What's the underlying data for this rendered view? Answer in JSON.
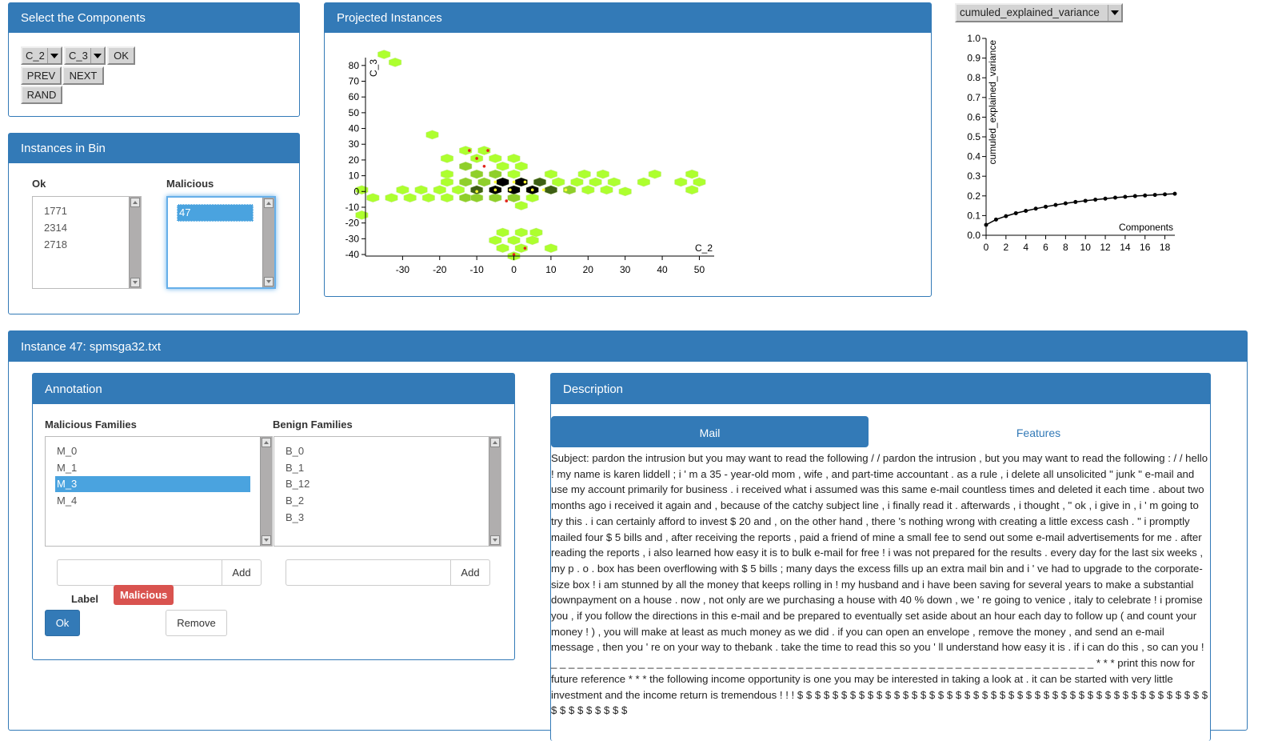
{
  "select_panel": {
    "title": "Select the Components",
    "x_component": "C_2",
    "y_component": "C_3",
    "ok_label": "OK",
    "prev_label": "PREV",
    "next_label": "NEXT",
    "rand_label": "RAND"
  },
  "bin_panel": {
    "title": "Instances in Bin",
    "ok_header": "Ok",
    "malicious_header": "Malicious",
    "ok_items": [
      "1771",
      "2314",
      "2718"
    ],
    "malicious_items": [
      "47"
    ],
    "selected_malicious": "47"
  },
  "projection_panel": {
    "title": "Projected Instances",
    "chart_data": {
      "type": "heatmap",
      "subtype": "hexbin",
      "xlabel": "C_2",
      "ylabel": "C_3",
      "xticks": [
        -30,
        -20,
        -10,
        0,
        10,
        20,
        30,
        40,
        50
      ],
      "yticks": [
        -40,
        -30,
        -20,
        -10,
        0,
        10,
        20,
        30,
        40,
        50,
        60,
        70,
        80
      ],
      "xlim": [
        -40,
        54
      ],
      "ylim": [
        -41,
        86
      ],
      "bins": [
        [
          -35,
          87,
          "light"
        ],
        [
          -32,
          82,
          "light"
        ],
        [
          -22,
          36,
          "light"
        ],
        [
          -18,
          21,
          "light"
        ],
        [
          -13,
          26,
          "light"
        ],
        [
          -10,
          21,
          "light"
        ],
        [
          -8,
          26,
          "light"
        ],
        [
          -5,
          21,
          "light"
        ],
        [
          -3,
          16,
          "light"
        ],
        [
          0,
          21,
          "light"
        ],
        [
          2,
          16,
          "light"
        ],
        [
          -18,
          11,
          "light"
        ],
        [
          -13,
          16,
          "mid"
        ],
        [
          -10,
          11,
          "mid"
        ],
        [
          -5,
          11,
          "mid"
        ],
        [
          0,
          11,
          "light"
        ],
        [
          -41,
          1,
          "light"
        ],
        [
          -38,
          -4,
          "light"
        ],
        [
          -33,
          -4,
          "light"
        ],
        [
          -30,
          1,
          "light"
        ],
        [
          -28,
          -4,
          "light"
        ],
        [
          -25,
          1,
          "light"
        ],
        [
          -23,
          -4,
          "light"
        ],
        [
          -20,
          1,
          "light"
        ],
        [
          -18,
          -4,
          "light"
        ],
        [
          -15,
          1,
          "light"
        ],
        [
          -13,
          -4,
          "mid"
        ],
        [
          -10,
          -4,
          "mid"
        ],
        [
          -5,
          -4,
          "mid"
        ],
        [
          0,
          -4,
          "mid"
        ],
        [
          5,
          -4,
          "light"
        ],
        [
          2,
          -9,
          "light"
        ],
        [
          -18,
          6,
          "light"
        ],
        [
          -13,
          6,
          "mid"
        ],
        [
          -8,
          6,
          "mid"
        ],
        [
          -3,
          6,
          "mid"
        ],
        [
          2,
          6,
          "dark"
        ],
        [
          7,
          6,
          "dark"
        ],
        [
          12,
          6,
          "light"
        ],
        [
          -10,
          1,
          "dark"
        ],
        [
          -5,
          1,
          "black"
        ],
        [
          0,
          1,
          "black"
        ],
        [
          5,
          1,
          "black"
        ],
        [
          -3,
          6,
          "black"
        ],
        [
          2,
          6,
          "black"
        ],
        [
          10,
          1,
          "dark"
        ],
        [
          15,
          1,
          "mid"
        ],
        [
          20,
          1,
          "light"
        ],
        [
          25,
          1,
          "light"
        ],
        [
          17,
          6,
          "light"
        ],
        [
          22,
          6,
          "light"
        ],
        [
          19,
          11,
          "light"
        ],
        [
          24,
          11,
          "light"
        ],
        [
          27,
          6,
          "light"
        ],
        [
          10,
          11,
          "light"
        ],
        [
          12,
          6,
          "light"
        ],
        [
          30,
          0,
          "light"
        ],
        [
          35,
          6,
          "light"
        ],
        [
          38,
          11,
          "light"
        ],
        [
          45,
          6,
          "light"
        ],
        [
          48,
          11,
          "light"
        ],
        [
          50,
          6,
          "light"
        ],
        [
          48,
          1,
          "light"
        ],
        [
          -41,
          -15,
          "light"
        ],
        [
          -3,
          -26,
          "light"
        ],
        [
          2,
          -26,
          "light"
        ],
        [
          6,
          -26,
          "light"
        ],
        [
          -5,
          -31,
          "light"
        ],
        [
          0,
          -31,
          "light"
        ],
        [
          5,
          -31,
          "light"
        ],
        [
          10,
          -36,
          "light"
        ],
        [
          -3,
          -36,
          "light"
        ],
        [
          2,
          -36,
          "light"
        ],
        [
          0,
          -41,
          "light"
        ]
      ],
      "red_points": [
        [
          -12,
          26
        ],
        [
          -7,
          26
        ],
        [
          -8,
          16
        ],
        [
          -2,
          -6
        ],
        [
          -10,
          21
        ],
        [
          3,
          -36
        ],
        [
          0,
          -40
        ]
      ],
      "yellow_points": [
        [
          -10,
          0
        ],
        [
          -5,
          1
        ],
        [
          0,
          6
        ],
        [
          5,
          1
        ],
        [
          -5,
          6
        ],
        [
          -1,
          1
        ],
        [
          3,
          6
        ],
        [
          8,
          1
        ],
        [
          14,
          1
        ]
      ]
    }
  },
  "variance_panel": {
    "selector": "cumuled_explained_variance",
    "chart_data": {
      "type": "line",
      "xlabel": "Components",
      "ylabel": "cumuled_explained_variance",
      "x": [
        0,
        1,
        2,
        3,
        4,
        5,
        6,
        7,
        8,
        9,
        10,
        11,
        12,
        13,
        14,
        15,
        16,
        17,
        18,
        19
      ],
      "y": [
        0.053,
        0.08,
        0.097,
        0.112,
        0.124,
        0.135,
        0.145,
        0.154,
        0.162,
        0.169,
        0.175,
        0.181,
        0.186,
        0.191,
        0.195,
        0.199,
        0.202,
        0.205,
        0.208,
        0.211
      ],
      "xticks": [
        0,
        2,
        4,
        6,
        8,
        10,
        12,
        14,
        16,
        18
      ],
      "yticks": [
        0.0,
        0.1,
        0.2,
        0.3,
        0.4,
        0.5,
        0.6,
        0.7,
        0.8,
        0.9,
        1.0
      ],
      "ylim": [
        0,
        1.0
      ],
      "xlim": [
        0,
        19
      ]
    }
  },
  "instance_panel": {
    "title": "Instance 47: spmsga32.txt",
    "annotation": {
      "title": "Annotation",
      "malicious_header": "Malicious Families",
      "benign_header": "Benign Families",
      "malicious_families": [
        "M_0",
        "M_1",
        "M_3",
        "M_4"
      ],
      "selected_family": "M_3",
      "benign_families": [
        "B_0",
        "B_1",
        "B_12",
        "B_2",
        "B_3"
      ],
      "add_label": "Add",
      "label_text": "Label",
      "label_value": "Malicious",
      "label_color": "#d9534f",
      "ok_label": "Ok",
      "remove_label": "Remove"
    },
    "description": {
      "title": "Description",
      "tab_mail": "Mail",
      "tab_features": "Features",
      "mail_text": "Subject: pardon the intrusion but you may want to read the following / / pardon the intrusion , but you may want to read the following : / / hello ! my name is karen liddell ; i ' m a 35 - year-old mom , wife , and part-time accountant . as a rule , i delete all unsolicited \" junk \" e-mail and use my account primarily for business . i received what i assumed was this same e-mail countless times and deleted it each time . about two months ago i received it again and , because of the catchy subject line , i finally read it . afterwards , i thought , \" ok , i give in , i ' m going to try this . i can certainly afford to invest $ 20 and , on the other hand , there 's nothing wrong with creating a little excess cash . \" i promptly mailed four $ 5 bills and , after receiving the reports , paid a friend of mine a small fee to send out some e-mail advertisements for me . after reading the reports , i also learned how easy it is to bulk e-mail for free ! i was not prepared for the results . every day for the last six weeks , my p . o . box has been overflowing with $ 5 bills ; many days the excess fills up an extra mail bin and i ' ve had to upgrade to the corporate-size box ! i am stunned by all the money that keeps rolling in ! my husband and i have been saving for several years to make a substantial downpayment on a house . now , not only are we purchasing a house with 40 % down , we ' re going to venice , italy to celebrate ! i promise you , if you follow the directions in this e-mail and be prepared to eventually set aside about an hour each day to follow up ( and count your money ! ) , you will make at least as much money as we did . if you can open an envelope , remove the money , and send an e-mail message , then you ' re on your way to thebank . take the time to read this so you ' ll understand how easy it is . if i can do this , so can you ! _ _ _ _ _ _ _ _ _ _ _ _ _ _ _ _ _ _ _ _ _ _ _ _ _ _ _ _ _ _ _ _ _ _ _ _ _ _ _ _ _ _ _ _ _ _ _ _ _ _ _ _ _ _ _ _ _ _ _ _ _ _ * * * print this now for future reference * * * the following income opportunity is one you may be interested in taking a look at . it can be started with very little investment and the income return is tremendous ! ! ! $ $ $ $ $ $ $ $ $ $ $ $ $ $ $ $ $ $ $ $ $ $ $ $ $ $ $ $ $ $ $ $ $ $ $ $ $ $ $ $ $ $ $ $ $ $ $ $ $ $ $ $ $ $ $ $"
    }
  }
}
